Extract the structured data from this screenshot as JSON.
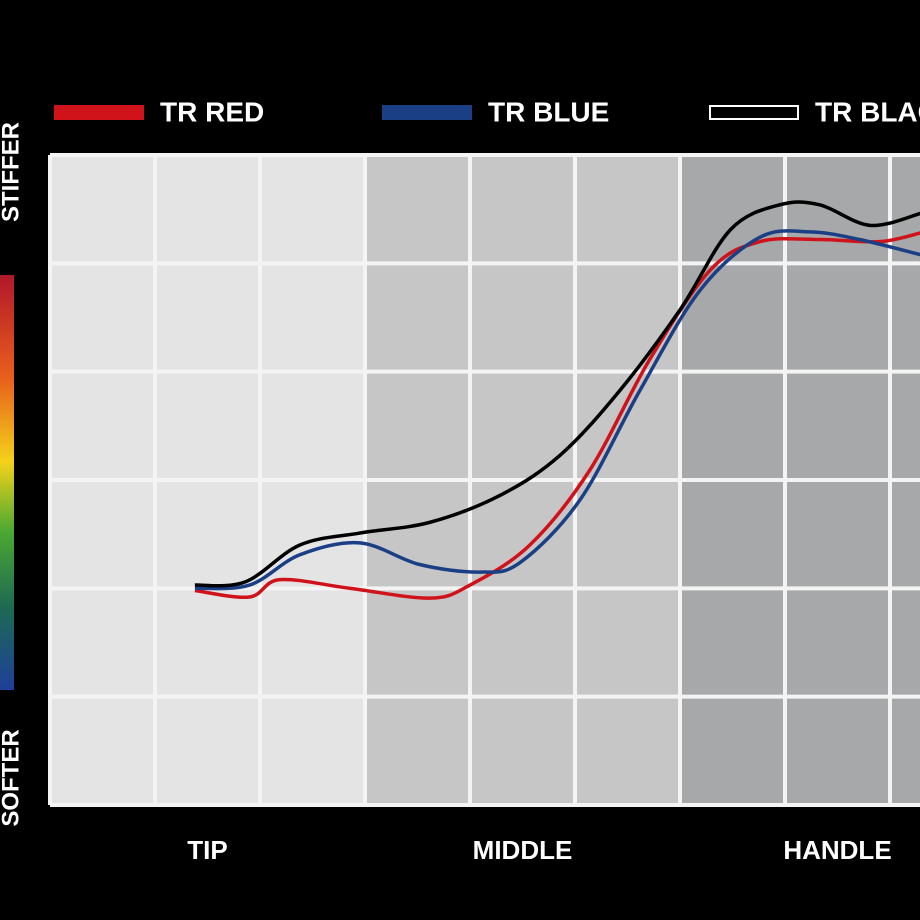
{
  "chart_data": {
    "type": "line",
    "categories": [
      "TIP",
      "MIDDLE",
      "HANDLE"
    ],
    "y_top_label": "STIFFER",
    "y_bottom_label": "SOFTER",
    "xlim": [
      0,
      8.29
    ],
    "ylim": [
      0,
      6
    ],
    "grid": true,
    "series": [
      {
        "name": "TR RED",
        "color": "#d0121b",
        "x": [
          1.38,
          1.9,
          2.19,
          2.86,
          3.62,
          4.0,
          4.57,
          5.14,
          5.71,
          6.29,
          6.76,
          7.33,
          7.9,
          8.29
        ],
        "values": [
          1.98,
          1.92,
          2.08,
          2.0,
          1.91,
          2.03,
          2.4,
          3.09,
          4.11,
          4.94,
          5.2,
          5.22,
          5.2,
          5.28
        ]
      },
      {
        "name": "TR BLUE",
        "color": "#1b3f85",
        "x": [
          1.38,
          1.9,
          2.38,
          2.95,
          3.52,
          4.1,
          4.48,
          5.05,
          5.62,
          6.19,
          6.76,
          7.24,
          7.71,
          8.29
        ],
        "values": [
          2.0,
          2.03,
          2.31,
          2.42,
          2.22,
          2.15,
          2.24,
          2.82,
          3.83,
          4.75,
          5.24,
          5.29,
          5.22,
          5.08
        ]
      },
      {
        "name": "TR BLACK",
        "color": "#000000",
        "x": [
          1.38,
          1.86,
          2.38,
          2.95,
          3.62,
          4.29,
          4.86,
          5.43,
          6.0,
          6.48,
          6.95,
          7.33,
          7.81,
          8.29
        ],
        "values": [
          2.03,
          2.06,
          2.4,
          2.51,
          2.61,
          2.86,
          3.23,
          3.83,
          4.57,
          5.31,
          5.54,
          5.54,
          5.35,
          5.46
        ]
      }
    ]
  }
}
